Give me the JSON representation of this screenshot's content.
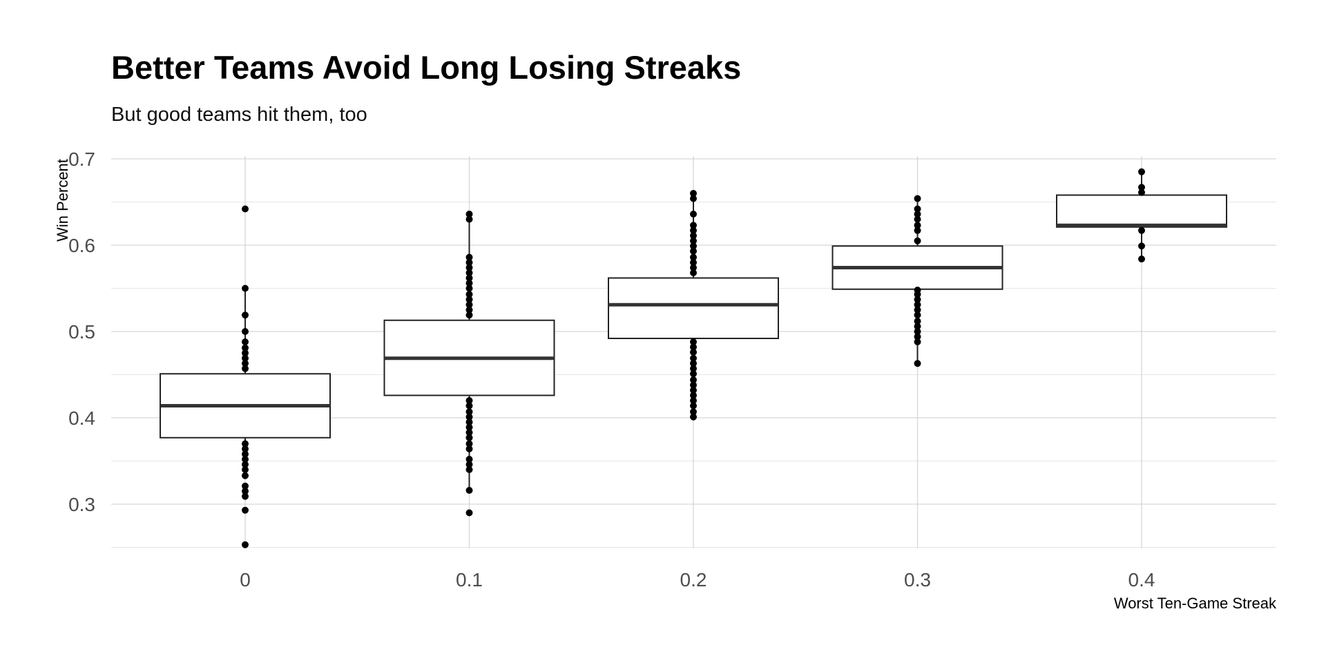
{
  "chart_data": {
    "type": "box",
    "title": "Better Teams Avoid Long Losing Streaks",
    "subtitle": "But good teams hit them, too",
    "xlabel": "Worst Ten-Game Streak",
    "ylabel": "Win Percent",
    "ylim": [
      0.245,
      0.7
    ],
    "yticks": [
      0.3,
      0.4,
      0.5,
      0.6,
      0.7
    ],
    "ytick_labels": [
      "0.3",
      "0.4",
      "0.5",
      "0.6",
      "0.7"
    ],
    "xticks": [
      0,
      0.1,
      0.2,
      0.3,
      0.4
    ],
    "xtick_labels": [
      "0",
      "0.1",
      "0.2",
      "0.3",
      "0.4"
    ],
    "grid": true,
    "legend": "none",
    "boxes": [
      {
        "x": 0,
        "q1": 0.377,
        "median": 0.414,
        "q3": 0.451,
        "whisker_low": 0.367,
        "whisker_high": 0.55,
        "points": [
          0.642,
          0.55,
          0.519,
          0.5,
          0.488,
          0.481,
          0.475,
          0.469,
          0.463,
          0.457,
          0.37,
          0.364,
          0.358,
          0.352,
          0.346,
          0.34,
          0.333,
          0.321,
          0.315,
          0.309,
          0.293,
          0.253
        ]
      },
      {
        "x": 0.1,
        "q1": 0.426,
        "median": 0.469,
        "q3": 0.513,
        "whisker_low": 0.316,
        "whisker_high": 0.636,
        "points": [
          0.636,
          0.63,
          0.586,
          0.58,
          0.574,
          0.568,
          0.562,
          0.556,
          0.55,
          0.543,
          0.537,
          0.531,
          0.525,
          0.519,
          0.42,
          0.414,
          0.407,
          0.401,
          0.395,
          0.389,
          0.383,
          0.377,
          0.37,
          0.364,
          0.352,
          0.346,
          0.34,
          0.316,
          0.29
        ]
      },
      {
        "x": 0.2,
        "q1": 0.492,
        "median": 0.531,
        "q3": 0.562,
        "whisker_low": 0.401,
        "whisker_high": 0.66,
        "points": [
          0.66,
          0.654,
          0.636,
          0.623,
          0.617,
          0.611,
          0.605,
          0.599,
          0.593,
          0.586,
          0.58,
          0.574,
          0.568,
          0.488,
          0.482,
          0.476,
          0.469,
          0.463,
          0.457,
          0.451,
          0.444,
          0.438,
          0.432,
          0.426,
          0.42,
          0.414,
          0.407,
          0.401
        ]
      },
      {
        "x": 0.3,
        "q1": 0.549,
        "median": 0.574,
        "q3": 0.599,
        "whisker_low": 0.463,
        "whisker_high": 0.654,
        "points": [
          0.654,
          0.642,
          0.636,
          0.63,
          0.623,
          0.617,
          0.605,
          0.548,
          0.543,
          0.537,
          0.531,
          0.525,
          0.519,
          0.512,
          0.506,
          0.5,
          0.494,
          0.488,
          0.463
        ]
      },
      {
        "x": 0.4,
        "q1": 0.621,
        "median": 0.623,
        "q3": 0.658,
        "whisker_low": 0.584,
        "whisker_high": 0.685,
        "points": [
          0.685,
          0.667,
          0.661,
          0.617,
          0.599,
          0.584
        ]
      }
    ]
  }
}
